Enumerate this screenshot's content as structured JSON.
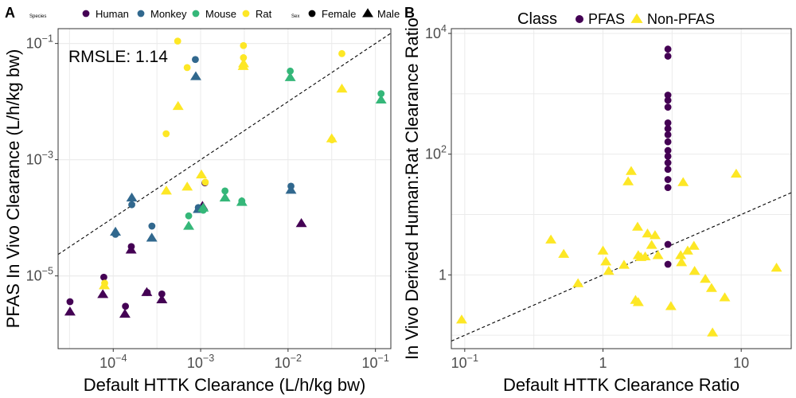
{
  "chart_data": [
    {
      "panel": "A",
      "type": "scatter",
      "xlabel": "Default HTTK Clearance (L/h/kg bw)",
      "ylabel": "PFAS In Vivo Clearance (L/h/kg bw)",
      "xscale": "log10",
      "yscale": "log10",
      "xlim": [
        2.34e-05,
        0.15
      ],
      "ylim": [
        5.6e-07,
        0.18
      ],
      "xticks": [
        {
          "value": 0.0001,
          "base": "10",
          "exp": "−4"
        },
        {
          "value": 0.001,
          "base": "10",
          "exp": "−3"
        },
        {
          "value": 0.01,
          "base": "10",
          "exp": "−2"
        },
        {
          "value": 0.1,
          "base": "10",
          "exp": "−1"
        }
      ],
      "yticks": [
        {
          "value": 1e-05,
          "base": "10",
          "exp": "−5"
        },
        {
          "value": 0.001,
          "base": "10",
          "exp": "−3"
        },
        {
          "value": 0.1,
          "base": "10",
          "exp": "−1"
        }
      ],
      "grid": true,
      "reference_line": "y = x (dashed)",
      "annotation": "RMSLE: 1.14",
      "legend": {
        "position": "top",
        "color_title": "Species",
        "shape_title": "Sex",
        "species": [
          {
            "name": "Human",
            "color": "#440154"
          },
          {
            "name": "Monkey",
            "color": "#31688e"
          },
          {
            "name": "Mouse",
            "color": "#35b779"
          },
          {
            "name": "Rat",
            "color": "#fde725"
          }
        ],
        "sexes": [
          {
            "name": "Female",
            "shape": "circle"
          },
          {
            "name": "Male",
            "shape": "triangle"
          }
        ]
      },
      "series": [
        {
          "name": "Human",
          "color": "#440154",
          "points": [
            {
              "x": 3.2e-05,
              "y": 3.6e-06,
              "sex": "Female"
            },
            {
              "x": 3.2e-05,
              "y": 2.4e-06,
              "sex": "Male"
            },
            {
              "x": 7.8e-05,
              "y": 9.5e-06,
              "sex": "Female"
            },
            {
              "x": 7.6e-05,
              "y": 4.8e-06,
              "sex": "Male"
            },
            {
              "x": 0.000138,
              "y": 3e-06,
              "sex": "Female"
            },
            {
              "x": 0.000136,
              "y": 2.2e-06,
              "sex": "Male"
            },
            {
              "x": 0.000161,
              "y": 3.2e-05,
              "sex": "Female"
            },
            {
              "x": 0.00016,
              "y": 2.8e-05,
              "sex": "Male"
            },
            {
              "x": 0.000245,
              "y": 5.2e-06,
              "sex": "Female"
            },
            {
              "x": 0.000242,
              "y": 5.2e-06,
              "sex": "Male"
            },
            {
              "x": 0.00036,
              "y": 4.9e-06,
              "sex": "Female"
            },
            {
              "x": 0.00036,
              "y": 3.9e-06,
              "sex": "Male"
            },
            {
              "x": 0.00112,
              "y": 0.0004,
              "sex": "Female"
            },
            {
              "x": 0.00105,
              "y": 0.000158,
              "sex": "Male"
            },
            {
              "x": 0.0142,
              "y": 8e-05,
              "sex": "Male"
            }
          ]
        },
        {
          "name": "Monkey",
          "color": "#31688e",
          "points": [
            {
              "x": 0.000106,
              "y": 5.2e-05,
              "sex": "Female"
            },
            {
              "x": 0.000106,
              "y": 5.7e-05,
              "sex": "Male"
            },
            {
              "x": 0.000163,
              "y": 0.000168,
              "sex": "Female"
            },
            {
              "x": 0.000163,
              "y": 0.00022,
              "sex": "Male"
            },
            {
              "x": 0.000277,
              "y": 7.2e-05,
              "sex": "Female"
            },
            {
              "x": 0.000276,
              "y": 4.5e-05,
              "sex": "Male"
            },
            {
              "x": 0.00087,
              "y": 0.053,
              "sex": "Female"
            },
            {
              "x": 0.00088,
              "y": 0.027,
              "sex": "Male"
            },
            {
              "x": 0.00094,
              "y": 0.00015,
              "sex": "Female"
            },
            {
              "x": 0.00094,
              "y": 0.00014,
              "sex": "Male"
            },
            {
              "x": 0.0108,
              "y": 0.00035,
              "sex": "Female"
            },
            {
              "x": 0.0108,
              "y": 0.0003,
              "sex": "Male"
            }
          ]
        },
        {
          "name": "Mouse",
          "color": "#35b779",
          "points": [
            {
              "x": 0.00073,
              "y": 0.000108,
              "sex": "Female"
            },
            {
              "x": 0.00073,
              "y": 7.2e-05,
              "sex": "Male"
            },
            {
              "x": 0.00107,
              "y": 0.000135,
              "sex": "Female"
            },
            {
              "x": 0.00107,
              "y": 0.000148,
              "sex": "Male"
            },
            {
              "x": 0.0019,
              "y": 0.00029,
              "sex": "Female"
            },
            {
              "x": 0.0019,
              "y": 0.00022,
              "sex": "Male"
            },
            {
              "x": 0.00296,
              "y": 0.000195,
              "sex": "Female"
            },
            {
              "x": 0.00296,
              "y": 0.000185,
              "sex": "Male"
            },
            {
              "x": 0.0106,
              "y": 0.0335,
              "sex": "Female"
            },
            {
              "x": 0.0106,
              "y": 0.026,
              "sex": "Male"
            },
            {
              "x": 0.116,
              "y": 0.0137,
              "sex": "Female"
            },
            {
              "x": 0.116,
              "y": 0.0107,
              "sex": "Male"
            }
          ]
        },
        {
          "name": "Rat",
          "color": "#fde725",
          "points": [
            {
              "x": 7.98e-05,
              "y": 7.5e-06,
              "sex": "Female"
            },
            {
              "x": 7.9e-05,
              "y": 6.8e-06,
              "sex": "Male"
            },
            {
              "x": 0.000403,
              "y": 0.0028,
              "sex": "Female"
            },
            {
              "x": 0.000405,
              "y": 0.00029,
              "sex": "Male"
            },
            {
              "x": 0.000546,
              "y": 0.11,
              "sex": "Female"
            },
            {
              "x": 0.000552,
              "y": 0.0083,
              "sex": "Male"
            },
            {
              "x": 0.000701,
              "y": 0.0385,
              "sex": "Female"
            },
            {
              "x": 0.000702,
              "y": 0.00034,
              "sex": "Male"
            },
            {
              "x": 0.00113,
              "y": 0.00041,
              "sex": "Female"
            },
            {
              "x": 0.00102,
              "y": 0.00055,
              "sex": "Male"
            },
            {
              "x": 0.00309,
              "y": 0.057,
              "sex": "Female"
            },
            {
              "x": 0.00309,
              "y": 0.092,
              "sex": "Female"
            },
            {
              "x": 0.0031,
              "y": 0.045,
              "sex": "Male"
            },
            {
              "x": 0.00307,
              "y": 0.0405,
              "sex": "Male"
            },
            {
              "x": 0.0318,
              "y": 0.0022,
              "sex": "Female"
            },
            {
              "x": 0.0316,
              "y": 0.0023,
              "sex": "Male"
            },
            {
              "x": 0.0413,
              "y": 0.067,
              "sex": "Female"
            },
            {
              "x": 0.0413,
              "y": 0.0165,
              "sex": "Male"
            }
          ]
        }
      ]
    },
    {
      "panel": "B",
      "type": "scatter",
      "xlabel": "Default HTTK Clearance Ratio",
      "ylabel": "In Vivo Derived Human:Rat Clearance Ratio",
      "xscale": "log10",
      "yscale": "log10",
      "xlim": [
        0.08,
        23
      ],
      "ylim": [
        0.06,
        12000
      ],
      "xticks": [
        {
          "value": 0.1,
          "label": "10",
          "exp": "−1"
        },
        {
          "value": 1,
          "label": "1",
          "exp": ""
        },
        {
          "value": 10,
          "label": "10",
          "exp": ""
        }
      ],
      "yticks": [
        {
          "value": 1,
          "label": "1",
          "exp": ""
        },
        {
          "value": 100,
          "label": "10",
          "exp": "2"
        },
        {
          "value": 10000,
          "label": "10",
          "exp": "4"
        }
      ],
      "grid": true,
      "reference_line": "y = x (dashed)",
      "legend": {
        "position": "top",
        "title": "Class",
        "entries": [
          {
            "name": "PFAS",
            "shape": "circle",
            "color": "#440154"
          },
          {
            "name": "Non-PFAS",
            "shape": "triangle",
            "color": "#fde725"
          }
        ]
      },
      "series": [
        {
          "name": "PFAS",
          "color": "#440154",
          "shape": "circle",
          "points": [
            {
              "x": 2.95,
              "y": 5500
            },
            {
              "x": 2.95,
              "y": 4200
            },
            {
              "x": 2.95,
              "y": 950
            },
            {
              "x": 2.95,
              "y": 780
            },
            {
              "x": 2.95,
              "y": 600
            },
            {
              "x": 2.95,
              "y": 330
            },
            {
              "x": 2.95,
              "y": 265
            },
            {
              "x": 2.95,
              "y": 210
            },
            {
              "x": 2.95,
              "y": 160
            },
            {
              "x": 2.95,
              "y": 115
            },
            {
              "x": 2.95,
              "y": 92
            },
            {
              "x": 2.95,
              "y": 72
            },
            {
              "x": 2.95,
              "y": 56
            },
            {
              "x": 2.95,
              "y": 38
            },
            {
              "x": 2.95,
              "y": 28
            },
            {
              "x": 2.95,
              "y": 3.2
            },
            {
              "x": 2.95,
              "y": 1.5
            }
          ]
        },
        {
          "name": "Non-PFAS",
          "color": "#fde725",
          "shape": "triangle",
          "points": [
            {
              "x": 0.095,
              "y": 0.18
            },
            {
              "x": 0.42,
              "y": 3.8
            },
            {
              "x": 0.52,
              "y": 2.2
            },
            {
              "x": 0.66,
              "y": 0.72
            },
            {
              "x": 1.0,
              "y": 2.5
            },
            {
              "x": 1.05,
              "y": 1.65
            },
            {
              "x": 1.1,
              "y": 1.15
            },
            {
              "x": 1.42,
              "y": 1.45
            },
            {
              "x": 1.52,
              "y": 35
            },
            {
              "x": 1.6,
              "y": 52
            },
            {
              "x": 1.72,
              "y": 0.38
            },
            {
              "x": 1.78,
              "y": 6.2
            },
            {
              "x": 1.8,
              "y": 0.35
            },
            {
              "x": 1.8,
              "y": 2.1
            },
            {
              "x": 1.88,
              "y": 1.95
            },
            {
              "x": 2.02,
              "y": 2.0
            },
            {
              "x": 2.1,
              "y": 4.8
            },
            {
              "x": 2.25,
              "y": 3.1
            },
            {
              "x": 2.38,
              "y": 4.5
            },
            {
              "x": 2.5,
              "y": 2.1
            },
            {
              "x": 3.1,
              "y": 0.3
            },
            {
              "x": 3.65,
              "y": 2.1
            },
            {
              "x": 3.7,
              "y": 1.6
            },
            {
              "x": 3.8,
              "y": 34
            },
            {
              "x": 4.1,
              "y": 2.5
            },
            {
              "x": 4.55,
              "y": 3.0
            },
            {
              "x": 4.6,
              "y": 1.15
            },
            {
              "x": 5.5,
              "y": 0.85
            },
            {
              "x": 6.1,
              "y": 0.6
            },
            {
              "x": 6.2,
              "y": 0.11
            },
            {
              "x": 7.6,
              "y": 0.42
            },
            {
              "x": 9.2,
              "y": 47
            },
            {
              "x": 18.0,
              "y": 1.3
            }
          ]
        }
      ]
    }
  ]
}
